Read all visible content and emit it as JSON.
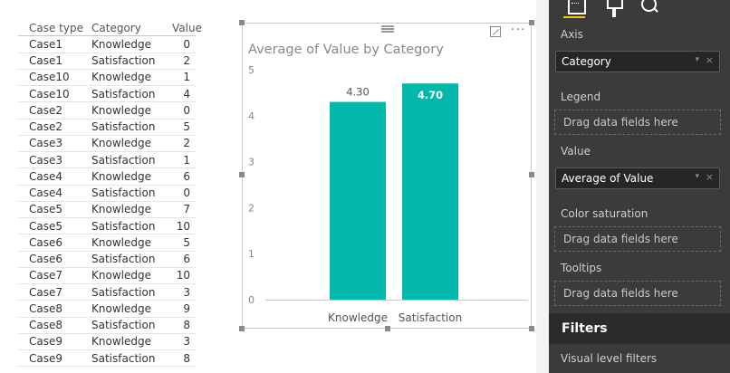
{
  "table": {
    "headers": [
      "Case type",
      "Category",
      "Value"
    ],
    "rows": [
      [
        "Case1",
        "Knowledge",
        "0"
      ],
      [
        "Case1",
        "Satisfaction",
        "2"
      ],
      [
        "Case10",
        "Knowledge",
        "1"
      ],
      [
        "Case10",
        "Satisfaction",
        "4"
      ],
      [
        "Case2",
        "Knowledge",
        "0"
      ],
      [
        "Case2",
        "Satisfaction",
        "5"
      ],
      [
        "Case3",
        "Knowledge",
        "2"
      ],
      [
        "Case3",
        "Satisfaction",
        "1"
      ],
      [
        "Case4",
        "Knowledge",
        "6"
      ],
      [
        "Case4",
        "Satisfaction",
        "0"
      ],
      [
        "Case5",
        "Knowledge",
        "7"
      ],
      [
        "Case5",
        "Satisfaction",
        "10"
      ],
      [
        "Case6",
        "Knowledge",
        "5"
      ],
      [
        "Case6",
        "Satisfaction",
        "6"
      ],
      [
        "Case7",
        "Knowledge",
        "10"
      ],
      [
        "Case7",
        "Satisfaction",
        "3"
      ],
      [
        "Case8",
        "Knowledge",
        "9"
      ],
      [
        "Case8",
        "Satisfaction",
        "8"
      ],
      [
        "Case9",
        "Knowledge",
        "3"
      ],
      [
        "Case9",
        "Satisfaction",
        "8"
      ]
    ]
  },
  "chart_data": {
    "type": "bar",
    "title": "Average of Value by Category",
    "categories": [
      "Knowledge",
      "Satisfaction"
    ],
    "values": [
      4.3,
      4.7
    ],
    "data_labels": [
      "4.30",
      "4.70"
    ],
    "yticks": [
      "0",
      "1",
      "2",
      "3",
      "4",
      "5"
    ],
    "ylim": [
      0,
      5
    ],
    "xlabel": "",
    "ylabel": "",
    "grid": false,
    "bar_color": "#01b8aa"
  },
  "visual_header": {
    "focus_mode_icon": "focus-mode-icon",
    "more_options_label": "···"
  },
  "panel": {
    "tabs": [
      "fields-tab",
      "format-tab",
      "analytics-tab"
    ],
    "axis": {
      "label": "Axis",
      "field": "Category"
    },
    "legend": {
      "label": "Legend",
      "placeholder": "Drag data fields here"
    },
    "value": {
      "label": "Value",
      "field": "Average of Value"
    },
    "color_saturation": {
      "label": "Color saturation",
      "placeholder": "Drag data fields here"
    },
    "tooltips": {
      "label": "Tooltips",
      "placeholder": "Drag data fields here"
    },
    "filters": {
      "title": "Filters",
      "visual_level": "Visual level filters"
    },
    "remove_symbol": "×",
    "dropdown_symbol": "▾"
  },
  "colors": {
    "accent": "#f2c811",
    "bar": "#01b8aa",
    "panel_bg": "#3b3b3b"
  }
}
